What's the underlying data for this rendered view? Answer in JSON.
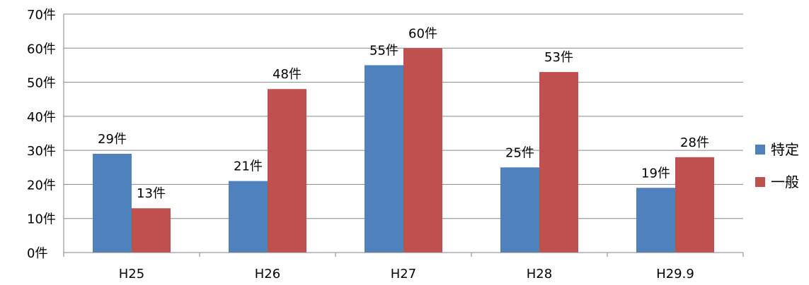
{
  "chart_data": {
    "type": "bar",
    "categories": [
      "H25",
      "H26",
      "H27",
      "H28",
      "H29.9"
    ],
    "series": [
      {
        "name": "特定",
        "values": [
          29,
          21,
          55,
          25,
          19
        ],
        "color": "#4F81BD"
      },
      {
        "name": "一般",
        "values": [
          13,
          48,
          60,
          53,
          28
        ],
        "color": "#C0504D"
      }
    ],
    "ylim": [
      0,
      70
    ],
    "y_ticks": [
      0,
      10,
      20,
      30,
      40,
      50,
      60,
      70
    ],
    "unit": "件",
    "grid": true,
    "legend": "right",
    "xlabel": "",
    "ylabel": "",
    "title": ""
  }
}
